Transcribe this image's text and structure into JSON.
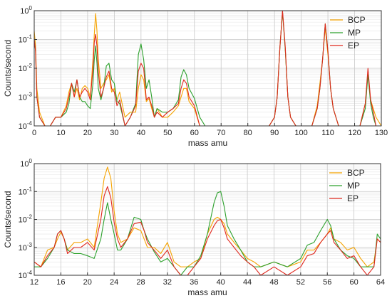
{
  "chart_data": [
    {
      "type": "line",
      "xlabel": "mass amu",
      "ylabel": "Counts/second",
      "xlim": [
        0,
        130
      ],
      "ylim": [
        0.0001,
        1
      ],
      "yscale": "log",
      "grid": true,
      "legend_position": "top-right",
      "x_ticks": [
        "0",
        "10",
        "20",
        "30",
        "40",
        "50",
        "60",
        "70",
        "80",
        "90",
        "100",
        "110",
        "120",
        "130"
      ],
      "x_tick_values": [
        0,
        10,
        20,
        30,
        40,
        50,
        60,
        70,
        80,
        90,
        100,
        110,
        120,
        130
      ],
      "y_ticks": [
        {
          "v": 0.0001,
          "base": "10",
          "exp": "-4"
        },
        {
          "v": 0.001,
          "base": "10",
          "exp": "-3"
        },
        {
          "v": 0.01,
          "base": "10",
          "exp": "-2"
        },
        {
          "v": 0.1,
          "base": "10",
          "exp": "-1"
        },
        {
          "v": 1,
          "base": "10",
          "exp": "0"
        }
      ],
      "series": [
        {
          "name": "BCP",
          "color": "#f5a300",
          "x": [
            0,
            0.5,
            1,
            2,
            4,
            6,
            8,
            10,
            12,
            13,
            14,
            15,
            16,
            17,
            18,
            19,
            20,
            21,
            22,
            22.5,
            23,
            23.5,
            24,
            25,
            26,
            27,
            28,
            29,
            30,
            31,
            32,
            34,
            36,
            38,
            39,
            40,
            41,
            42,
            43,
            44,
            45,
            46,
            48,
            50,
            52,
            54,
            55,
            56,
            57,
            58,
            60,
            62,
            64,
            66,
            70,
            80,
            88,
            90,
            91,
            92,
            93,
            94,
            95,
            96,
            98,
            100,
            104,
            106,
            107,
            108,
            109,
            110,
            111,
            112,
            114,
            118,
            122,
            124,
            125,
            126,
            127,
            128,
            130
          ],
          "values": [
            0.2,
            0.06,
            0.002,
            0.0003,
            0.0001,
            0.0001,
            0.0002,
            0.0002,
            0.0005,
            0.0015,
            0.003,
            0.001,
            0.002,
            0.0008,
            0.002,
            0.0025,
            0.002,
            0.001,
            0.02,
            0.15,
            0.8,
            0.2,
            0.02,
            0.002,
            0.003,
            0.004,
            0.006,
            0.0015,
            0.002,
            0.0008,
            0.0015,
            0.0002,
            0.0003,
            0.0003,
            0.002,
            0.006,
            0.004,
            0.0007,
            0.0009,
            0.0004,
            0.0002,
            0.0004,
            0.0002,
            0.0002,
            0.0003,
            0.0005,
            0.001,
            0.002,
            0.002,
            0.0007,
            0.0004,
            0.0001,
            0.0001,
            0.0001,
            0.0001,
            0.0001,
            0.0001,
            0.0002,
            0.001,
            0.05,
            0.9,
            0.05,
            0.001,
            0.0002,
            0.0001,
            0.0001,
            0.0001,
            0.0005,
            0.003,
            0.02,
            0.25,
            0.03,
            0.002,
            0.0004,
            0.0001,
            0.0001,
            0.0001,
            0.0006,
            0.006,
            0.0008,
            0.0004,
            0.0002,
            0.0001
          ]
        },
        {
          "name": "MP",
          "color": "#2ca02c",
          "x": [
            0,
            0.5,
            1,
            2,
            4,
            6,
            8,
            10,
            12,
            13,
            14,
            15,
            16,
            17,
            18,
            19,
            20,
            21,
            22,
            22.5,
            23,
            23.5,
            24,
            25,
            26,
            27,
            28,
            29,
            30,
            31,
            32,
            34,
            36,
            38,
            39,
            40,
            41,
            42,
            43,
            44,
            45,
            46,
            48,
            50,
            52,
            54,
            55,
            56,
            57,
            58,
            60,
            62,
            64,
            66,
            70,
            80,
            88,
            90,
            91,
            92,
            93,
            94,
            95,
            96,
            98,
            100,
            104,
            106,
            107,
            108,
            109,
            110,
            111,
            112,
            114,
            118,
            122,
            124,
            125,
            126,
            127,
            128,
            130
          ],
          "values": [
            0.1,
            0.04,
            0.001,
            0.0002,
            0.0001,
            0.0001,
            0.0002,
            0.0002,
            0.0003,
            0.0006,
            0.003,
            0.0015,
            0.004,
            0.001,
            0.0007,
            0.0007,
            0.0005,
            0.0004,
            0.003,
            0.02,
            0.06,
            0.015,
            0.002,
            0.0008,
            0.002,
            0.012,
            0.015,
            0.004,
            0.003,
            0.0007,
            0.0006,
            0.0001,
            0.0002,
            0.0006,
            0.03,
            0.07,
            0.02,
            0.002,
            0.004,
            0.001,
            0.0002,
            0.0004,
            0.0003,
            0.0003,
            0.0004,
            0.0008,
            0.005,
            0.009,
            0.006,
            0.002,
            0.0009,
            0.0002,
            0.0001,
            0.0001,
            0.0001,
            0.0001,
            0.0001,
            0.0002,
            0.001,
            0.05,
            0.9,
            0.05,
            0.001,
            0.0002,
            0.0001,
            0.0001,
            0.0001,
            0.0004,
            0.002,
            0.02,
            0.35,
            0.04,
            0.002,
            0.0004,
            0.0001,
            0.0001,
            0.0001,
            0.0004,
            0.006,
            0.0006,
            0.0002,
            0.0001,
            0.0001
          ]
        },
        {
          "name": "EP",
          "color": "#e0281e",
          "x": [
            0,
            0.5,
            1,
            2,
            4,
            6,
            8,
            10,
            12,
            13,
            14,
            15,
            16,
            17,
            18,
            19,
            20,
            21,
            22,
            22.5,
            23,
            23.5,
            24,
            25,
            26,
            27,
            28,
            29,
            30,
            31,
            32,
            34,
            36,
            38,
            39,
            40,
            41,
            42,
            43,
            44,
            45,
            46,
            48,
            50,
            52,
            54,
            55,
            56,
            57,
            58,
            60,
            62,
            64,
            66,
            70,
            80,
            88,
            90,
            91,
            92,
            93,
            94,
            95,
            96,
            98,
            100,
            104,
            106,
            107,
            108,
            109,
            110,
            111,
            112,
            114,
            118,
            122,
            124,
            125,
            126,
            127,
            128,
            130
          ],
          "values": [
            0.1,
            0.04,
            0.001,
            0.0002,
            0.0001,
            0.0001,
            0.0002,
            0.0002,
            0.0004,
            0.001,
            0.003,
            0.001,
            0.004,
            0.001,
            0.0015,
            0.002,
            0.0015,
            0.0008,
            0.01,
            0.08,
            0.15,
            0.06,
            0.008,
            0.001,
            0.002,
            0.005,
            0.008,
            0.002,
            0.0015,
            0.0005,
            0.0008,
            0.0001,
            0.0002,
            0.0005,
            0.008,
            0.015,
            0.01,
            0.0008,
            0.001,
            0.0005,
            0.0002,
            0.0003,
            0.0002,
            0.0003,
            0.0004,
            0.0006,
            0.002,
            0.004,
            0.003,
            0.001,
            0.0005,
            0.0001,
            0.0001,
            0.0001,
            0.0001,
            0.0001,
            0.0001,
            0.0002,
            0.001,
            0.05,
            1,
            0.06,
            0.001,
            0.0002,
            0.0001,
            0.0001,
            0.0001,
            0.0004,
            0.002,
            0.02,
            0.35,
            0.04,
            0.002,
            0.0004,
            0.0001,
            0.0001,
            0.0001,
            0.0006,
            0.01,
            0.0008,
            0.0003,
            0.0001,
            0.0001
          ]
        }
      ]
    },
    {
      "type": "line",
      "xlabel": "mass amu",
      "ylabel": "Counts/second",
      "xlim": [
        12,
        64
      ],
      "ylim": [
        0.0001,
        1
      ],
      "yscale": "log",
      "grid": true,
      "legend_position": "top-right",
      "x_ticks": [
        "12",
        "16",
        "20",
        "24",
        "28",
        "32",
        "36",
        "40",
        "44",
        "48",
        "52",
        "56",
        "60",
        "64"
      ],
      "x_tick_values": [
        12,
        16,
        20,
        24,
        28,
        32,
        36,
        40,
        44,
        48,
        52,
        56,
        60,
        64
      ],
      "y_ticks": [
        {
          "v": 0.0001,
          "base": "10",
          "exp": "-4"
        },
        {
          "v": 0.001,
          "base": "10",
          "exp": "-3"
        },
        {
          "v": 0.01,
          "base": "10",
          "exp": "-2"
        },
        {
          "v": 0.1,
          "base": "10",
          "exp": "-1"
        },
        {
          "v": 1,
          "base": "10",
          "exp": "0"
        }
      ],
      "series": [
        {
          "name": "BCP",
          "color": "#f5a300",
          "x": [
            12,
            13,
            14,
            15,
            15.5,
            16,
            16.5,
            17,
            18,
            19,
            20,
            21,
            22,
            22.5,
            23,
            23.5,
            24,
            24.5,
            25,
            26,
            27,
            28,
            28.5,
            29,
            30,
            31,
            32,
            33,
            34,
            35,
            36,
            37,
            38,
            39,
            39.5,
            40,
            40.5,
            41,
            42,
            43,
            44,
            45,
            46,
            48,
            50,
            52,
            53,
            54,
            55,
            56,
            56.5,
            57,
            58,
            59,
            60,
            61,
            62,
            63,
            63.5,
            64
          ],
          "values": [
            0.0003,
            0.0002,
            0.0008,
            0.001,
            0.002,
            0.0035,
            0.002,
            0.0008,
            0.0015,
            0.0015,
            0.002,
            0.001,
            0.04,
            0.3,
            0.75,
            0.3,
            0.02,
            0.003,
            0.0015,
            0.002,
            0.005,
            0.004,
            0.002,
            0.001,
            0.001,
            0.0006,
            0.0015,
            0.0003,
            0.0002,
            0.0002,
            0.0003,
            0.0004,
            0.003,
            0.01,
            0.012,
            0.01,
            0.007,
            0.003,
            0.0015,
            0.0008,
            0.0004,
            0.0003,
            0.0002,
            0.0003,
            0.0002,
            0.0003,
            0.0008,
            0.0008,
            0.0015,
            0.003,
            0.005,
            0.002,
            0.0015,
            0.0008,
            0.001,
            0.0004,
            0.0002,
            0.0003,
            0.002,
            0.0015
          ]
        },
        {
          "name": "MP",
          "color": "#2ca02c",
          "x": [
            12,
            13,
            14,
            15,
            15.5,
            16,
            16.5,
            17,
            18,
            19,
            20,
            21,
            22,
            22.5,
            23,
            23.5,
            24,
            24.5,
            25,
            26,
            27,
            28,
            28.5,
            29,
            30,
            31,
            32,
            33,
            34,
            35,
            36,
            37,
            38,
            39,
            39.5,
            40,
            40.5,
            41,
            42,
            43,
            44,
            45,
            46,
            48,
            50,
            52,
            53,
            54,
            55,
            56,
            56.5,
            57,
            58,
            59,
            60,
            61,
            62,
            63,
            63.5,
            64
          ],
          "values": [
            0.0002,
            0.0002,
            0.0004,
            0.001,
            0.003,
            0.004,
            0.002,
            0.0008,
            0.0006,
            0.0006,
            0.0005,
            0.0004,
            0.002,
            0.01,
            0.04,
            0.01,
            0.003,
            0.0008,
            0.0008,
            0.002,
            0.012,
            0.01,
            0.004,
            0.002,
            0.0007,
            0.0003,
            0.0004,
            0.0002,
            0.0001,
            0.0002,
            0.0002,
            0.0005,
            0.003,
            0.04,
            0.09,
            0.1,
            0.03,
            0.006,
            0.002,
            0.0008,
            0.0003,
            0.0002,
            0.0002,
            0.0003,
            0.0002,
            0.0004,
            0.0012,
            0.0015,
            0.004,
            0.01,
            0.006,
            0.002,
            0.0008,
            0.0005,
            0.0004,
            0.0002,
            0.0002,
            0.0002,
            0.003,
            0.002
          ]
        },
        {
          "name": "EP",
          "color": "#e0281e",
          "x": [
            12,
            13,
            14,
            15,
            15.5,
            16,
            16.5,
            17,
            18,
            19,
            20,
            21,
            22,
            22.5,
            23,
            23.5,
            24,
            24.5,
            25,
            26,
            27,
            28,
            28.5,
            29,
            30,
            31,
            32,
            33,
            34,
            35,
            36,
            37,
            38,
            39,
            39.5,
            40,
            40.5,
            41,
            42,
            43,
            44,
            45,
            46,
            48,
            50,
            52,
            53,
            54,
            55,
            56,
            56.5,
            57,
            58,
            59,
            60,
            61,
            62,
            63,
            63.5,
            64
          ],
          "values": [
            0.0003,
            0.0002,
            0.0005,
            0.001,
            0.003,
            0.004,
            0.002,
            0.0006,
            0.001,
            0.001,
            0.0015,
            0.0008,
            0.01,
            0.07,
            0.15,
            0.06,
            0.008,
            0.002,
            0.001,
            0.002,
            0.007,
            0.008,
            0.004,
            0.0015,
            0.0008,
            0.0004,
            0.0008,
            0.0002,
            0.0001,
            0.0001,
            0.0002,
            0.0004,
            0.002,
            0.006,
            0.009,
            0.01,
            0.005,
            0.002,
            0.001,
            0.0005,
            0.0003,
            0.0002,
            0.0001,
            0.0002,
            0.0001,
            0.0002,
            0.0005,
            0.0006,
            0.0015,
            0.003,
            0.004,
            0.0015,
            0.0008,
            0.0004,
            0.0005,
            0.0002,
            0.0001,
            0.0002,
            0.002,
            0.0015
          ]
        }
      ]
    }
  ]
}
